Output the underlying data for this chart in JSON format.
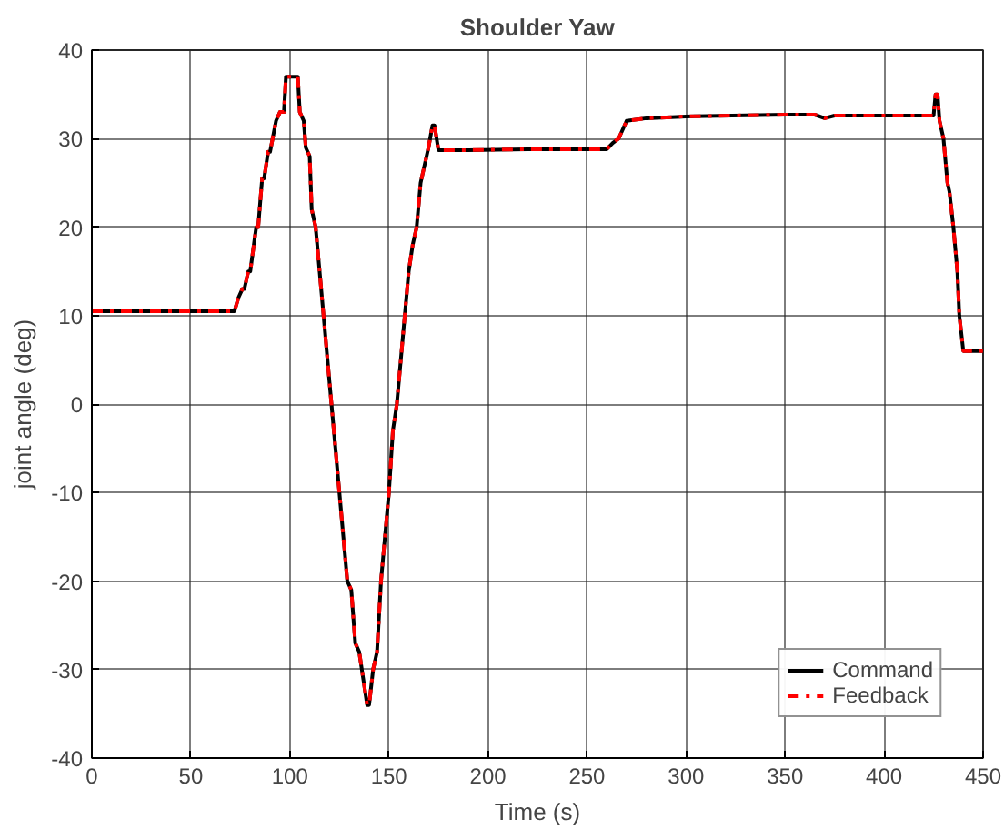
{
  "chart_data": {
    "type": "line",
    "title": "Shoulder Yaw",
    "xlabel": "Time (s)",
    "ylabel": "joint angle (deg)",
    "xlim": [
      0,
      450
    ],
    "ylim": [
      -40,
      40
    ],
    "xticks": [
      0,
      50,
      100,
      150,
      200,
      250,
      300,
      350,
      400,
      450
    ],
    "yticks": [
      -40,
      -30,
      -20,
      -10,
      0,
      10,
      20,
      30,
      40
    ],
    "grid": true,
    "legend": "bottom right",
    "marker": "none",
    "x": [
      0,
      72,
      74,
      76,
      77,
      79,
      80,
      83,
      84,
      86,
      87,
      89,
      90,
      93,
      95,
      97,
      98,
      100,
      104,
      105,
      107,
      108,
      110,
      111,
      113,
      115,
      117,
      119,
      121,
      123,
      125,
      127,
      129,
      131,
      133,
      135,
      137,
      139,
      140,
      142,
      144,
      146,
      148,
      150,
      152,
      154,
      156,
      158,
      160,
      162,
      164,
      166,
      168,
      170,
      172,
      173,
      175,
      190,
      220,
      260,
      263,
      266,
      270,
      280,
      300,
      350,
      365,
      370,
      375,
      400,
      425,
      426,
      427,
      428,
      430,
      432,
      433,
      435,
      437,
      438,
      440,
      450
    ],
    "series": [
      {
        "name": "Command",
        "color": "#000000",
        "line_style": "solid",
        "values": [
          10.5,
          10.5,
          12,
          13,
          13,
          15,
          15,
          20,
          20,
          25.5,
          25.5,
          28.5,
          28.5,
          32,
          33,
          33,
          37,
          37,
          37,
          33,
          32,
          29,
          28,
          22,
          20,
          15,
          10,
          5,
          0,
          -5,
          -10,
          -15,
          -20,
          -21,
          -27,
          -28,
          -31,
          -34,
          -34,
          -30,
          -28,
          -20,
          -15,
          -10,
          -3,
          0,
          5,
          10,
          15,
          18,
          20,
          25,
          27,
          29,
          31.5,
          31.5,
          28.7,
          28.7,
          28.8,
          28.8,
          29.5,
          30,
          32,
          32.3,
          32.5,
          32.7,
          32.7,
          32.3,
          32.6,
          32.6,
          32.6,
          35,
          35,
          32,
          30,
          25,
          24,
          20,
          15,
          10,
          6,
          6
        ]
      },
      {
        "name": "Feedback",
        "color": "#ff0000",
        "line_style": "dashdot",
        "values": [
          10.5,
          10.5,
          12,
          13,
          13,
          15,
          15,
          20,
          20,
          25.5,
          25.5,
          28.5,
          28.5,
          32,
          33,
          33,
          37,
          37,
          37,
          33,
          32,
          29,
          28,
          22,
          20,
          15,
          10,
          5,
          0,
          -5,
          -10,
          -15,
          -20,
          -21,
          -27,
          -28,
          -31,
          -34,
          -34,
          -30,
          -28,
          -20,
          -15,
          -10,
          -3,
          0,
          5,
          10,
          15,
          18,
          20,
          25,
          27,
          29,
          31.5,
          31.5,
          28.7,
          28.7,
          28.8,
          28.8,
          29.5,
          30,
          32,
          32.3,
          32.5,
          32.7,
          32.7,
          32.3,
          32.6,
          32.6,
          32.6,
          35,
          35,
          32,
          30,
          25,
          24,
          20,
          15,
          10,
          6,
          6
        ]
      }
    ]
  }
}
